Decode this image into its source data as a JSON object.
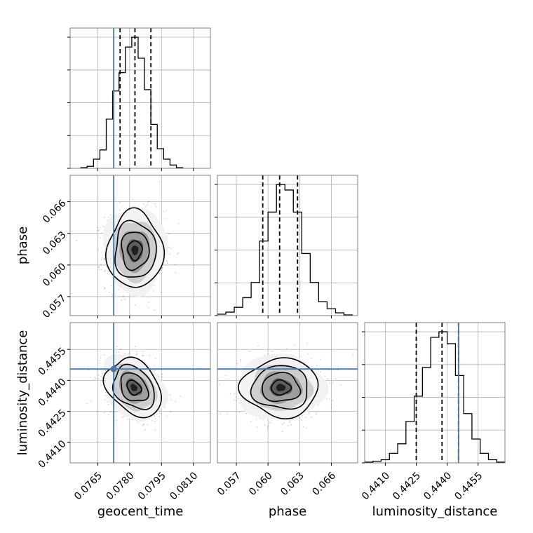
{
  "chart_data": {
    "type": "corner",
    "parameters": [
      {
        "name": "geocent_time",
        "label": "geocent_time",
        "range": [
          0.0752,
          0.0818
        ],
        "ticks": [
          0.0765,
          0.078,
          0.0795,
          0.081
        ],
        "tick_labels": [
          "0.0765",
          "0.0780",
          "0.0795",
          "0.0810"
        ],
        "truth": 0.07725,
        "quantiles": [
          0.07755,
          0.07825,
          0.079
        ],
        "histogram": {
          "bins": [
            0.0757,
            0.076,
            0.0763,
            0.0766,
            0.0769,
            0.0772,
            0.0775,
            0.0778,
            0.0781,
            0.0784,
            0.0787,
            0.079,
            0.0793,
            0.0796,
            0.0799,
            0.0802,
            0.0805
          ],
          "counts": [
            1,
            3,
            14,
            28,
            75,
            118,
            146,
            185,
            200,
            168,
            120,
            67,
            30,
            14,
            5,
            1
          ]
        }
      },
      {
        "name": "phase",
        "label": "phase",
        "range": [
          0.0552,
          0.0685
        ],
        "ticks": [
          0.057,
          0.06,
          0.063,
          0.066
        ],
        "tick_labels": [
          "0.057",
          "0.060",
          "0.063",
          "0.066"
        ],
        "truth": null,
        "quantiles": [
          0.0595,
          0.0611,
          0.0628
        ],
        "histogram": {
          "bins": [
            0.0552,
            0.056,
            0.0568,
            0.0576,
            0.0584,
            0.0592,
            0.06,
            0.0608,
            0.0616,
            0.0624,
            0.0632,
            0.064,
            0.0648,
            0.0656,
            0.0664,
            0.0672,
            0.068
          ],
          "counts": [
            2,
            5,
            12,
            26,
            48,
            108,
            150,
            190,
            182,
            150,
            90,
            48,
            20,
            10,
            4,
            1
          ]
        }
      },
      {
        "name": "luminosity_distance",
        "label": "luminosity_distance",
        "range": [
          0.44,
          0.4468
        ],
        "ticks": [
          0.441,
          0.4425,
          0.444,
          0.4455
        ],
        "tick_labels": [
          "0.4410",
          "0.4425",
          "0.4440",
          "0.4455"
        ],
        "truth": 0.44455,
        "quantiles": [
          0.4425,
          0.44375,
          0.44455
        ],
        "histogram": {
          "bins": [
            0.44,
            0.4404,
            0.4408,
            0.4412,
            0.4416,
            0.442,
            0.4424,
            0.4428,
            0.4432,
            0.4436,
            0.444,
            0.4444,
            0.4448,
            0.4452,
            0.4456,
            0.446,
            0.4464,
            0.4468
          ],
          "counts": [
            1,
            2,
            4,
            12,
            24,
            52,
            84,
            120,
            158,
            165,
            150,
            110,
            62,
            30,
            12,
            4,
            1
          ]
        }
      }
    ],
    "pairs": [
      {
        "x": "geocent_time",
        "y": "phase",
        "center": [
          0.07825,
          0.0614
        ],
        "contour_levels": [
          0.5,
          1.0,
          1.5,
          2.0
        ],
        "sigma": [
          0.00065,
          0.0018
        ],
        "rho": 0.0
      },
      {
        "x": "geocent_time",
        "y": "luminosity_distance",
        "center": [
          0.0782,
          0.44365
        ],
        "contour_levels": [
          0.5,
          1.0,
          1.5,
          2.0
        ],
        "sigma": [
          0.00065,
          0.0007
        ],
        "rho": -0.3,
        "truth_point": [
          0.07725,
          0.44455
        ]
      },
      {
        "x": "phase",
        "y": "luminosity_distance",
        "center": [
          0.0612,
          0.44365
        ],
        "contour_levels": [
          0.5,
          1.0,
          1.5,
          2.0
        ],
        "sigma": [
          0.0018,
          0.0007
        ],
        "rho": 0.0
      }
    ],
    "truth_color": "#4878a8",
    "grid": true,
    "show_titles": false
  }
}
